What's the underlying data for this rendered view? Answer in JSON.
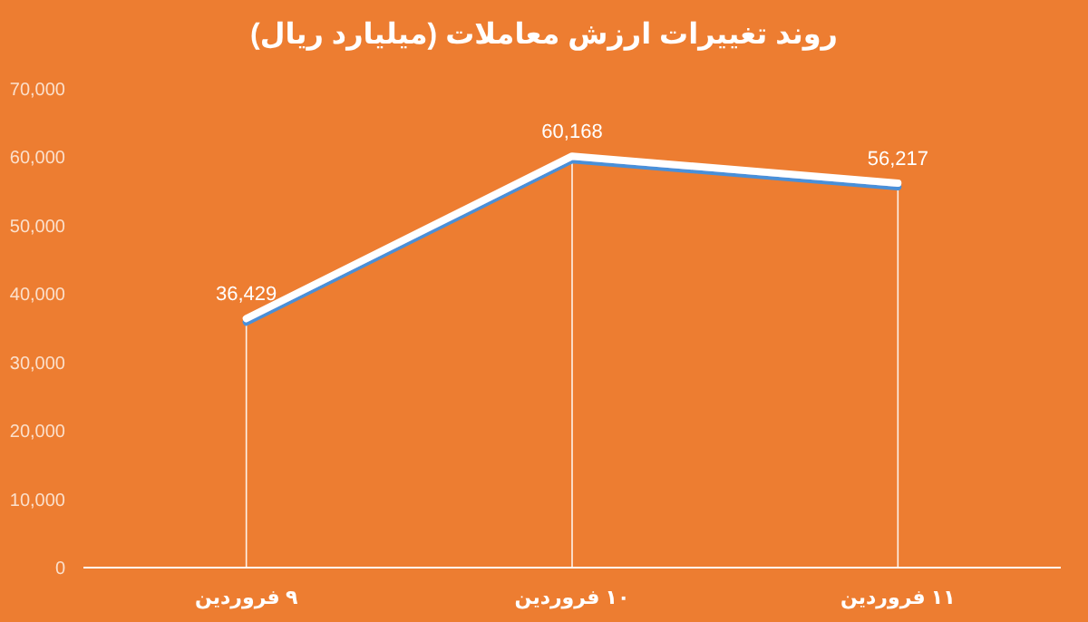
{
  "chart_data": {
    "type": "line",
    "title": "روند تغییرات ارزش معاملات (میلیارد ریال)",
    "categories": [
      "۹ فروردین",
      "۱۰ فروردین",
      "۱۱ فروردین"
    ],
    "series": [
      {
        "color": "#ffffff",
        "values": [
          36429,
          60168,
          56217
        ],
        "value_labels": [
          "36,429",
          "60,168",
          "56,217"
        ]
      }
    ],
    "ylim": [
      0,
      70000
    ],
    "yticks": [
      {
        "value": 0,
        "label": "0"
      },
      {
        "value": 10000,
        "label": "10,000"
      },
      {
        "value": 20000,
        "label": "20,000"
      },
      {
        "value": 30000,
        "label": "30,000"
      },
      {
        "value": 40000,
        "label": "40,000"
      },
      {
        "value": 50000,
        "label": "50,000"
      },
      {
        "value": 60000,
        "label": "60,000"
      },
      {
        "value": 70000,
        "label": "70,000"
      }
    ],
    "grid": "x",
    "marker": "none",
    "line_style": "solid"
  }
}
